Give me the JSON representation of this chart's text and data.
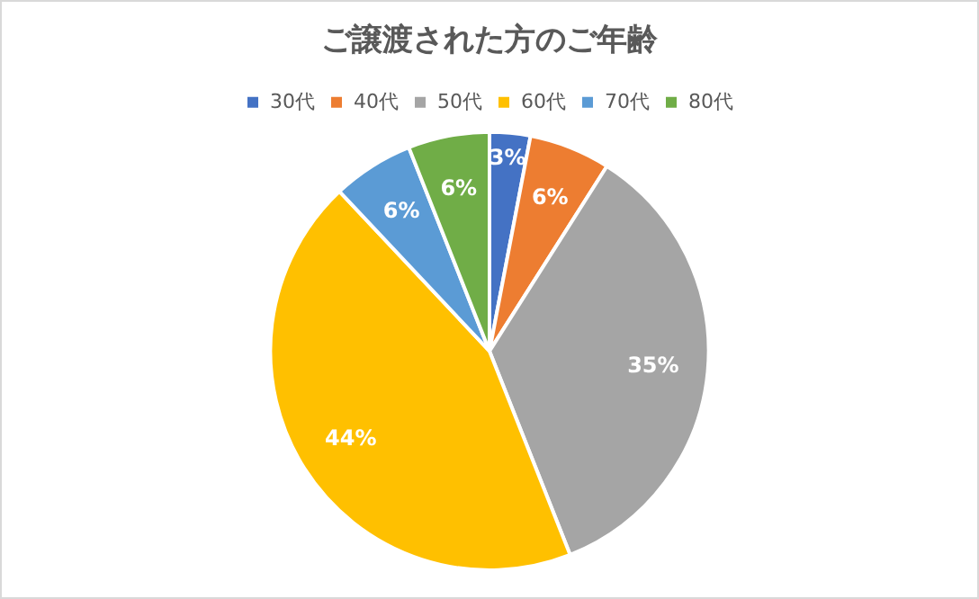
{
  "chart_data": {
    "type": "pie",
    "title": "ご譲渡された方のご年齢",
    "categories": [
      "30代",
      "40代",
      "50代",
      "60代",
      "70代",
      "80代"
    ],
    "values": [
      3,
      6,
      35,
      44,
      6,
      6
    ],
    "colors": [
      "#4472c4",
      "#ed7d31",
      "#a5a5a5",
      "#ffc000",
      "#5b9bd5",
      "#70ad47"
    ],
    "value_labels": [
      "3%",
      "6%",
      "35%",
      "44%",
      "6%",
      "6%"
    ],
    "legend": "top"
  }
}
